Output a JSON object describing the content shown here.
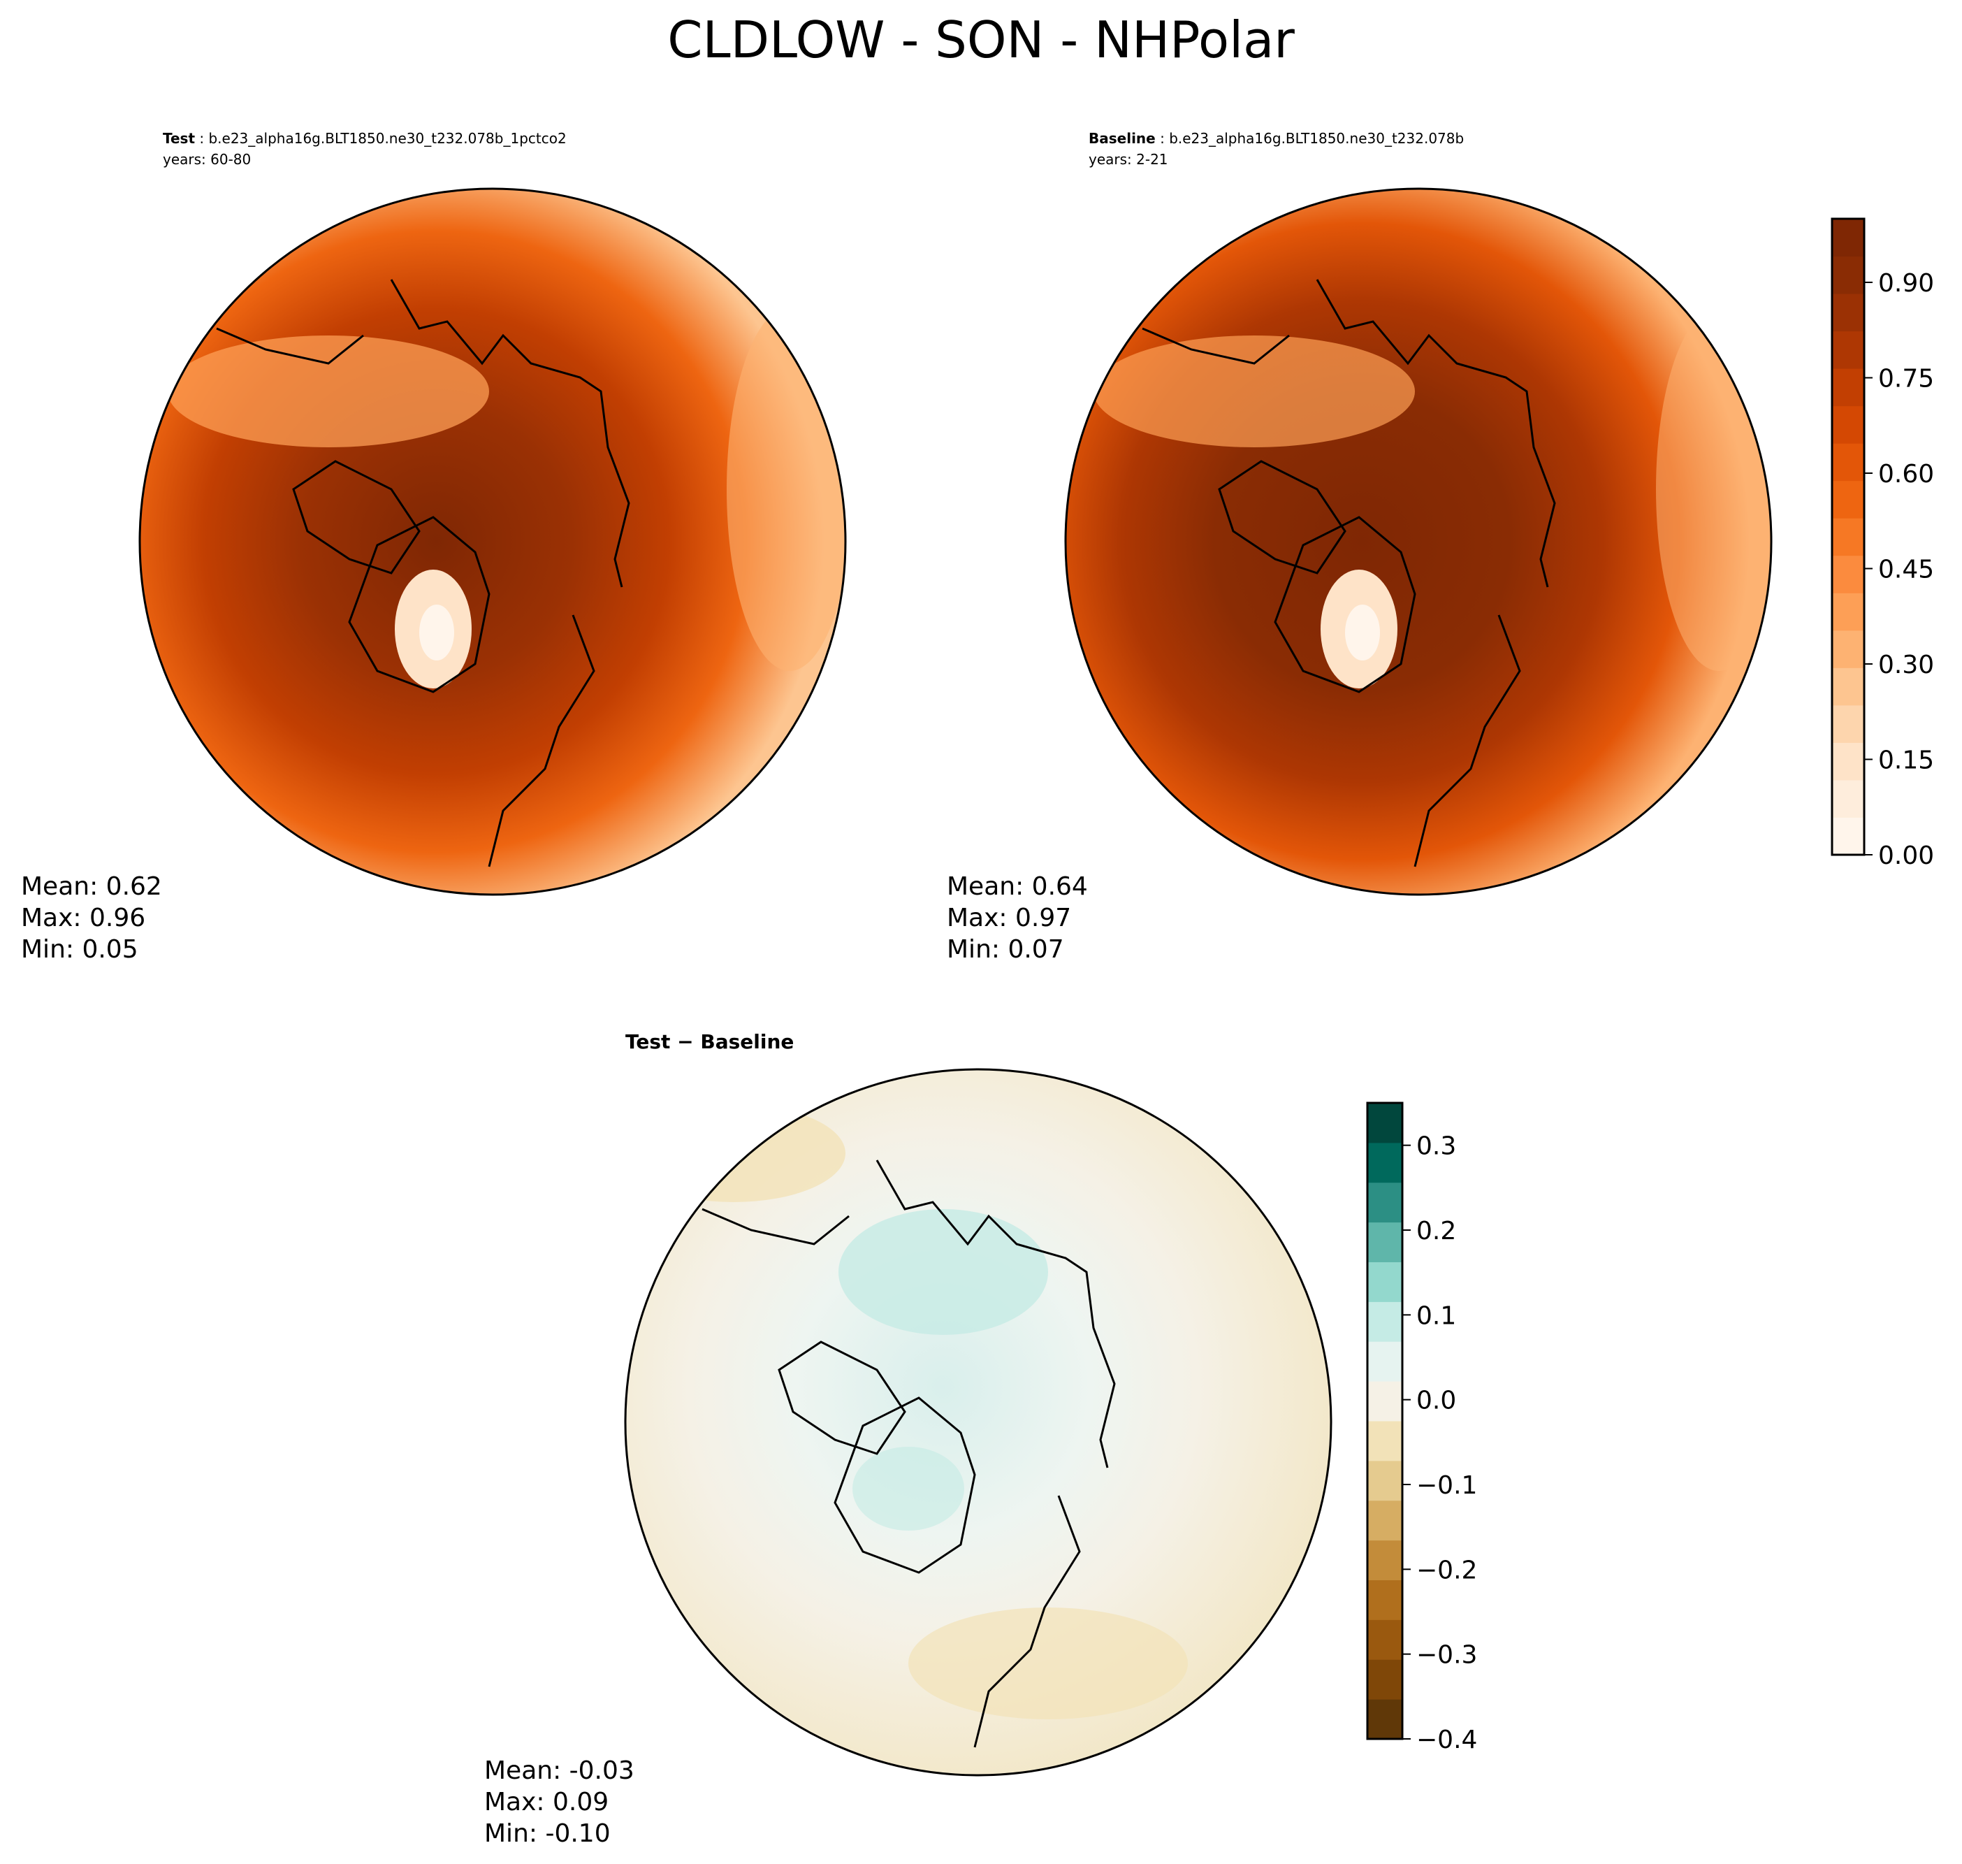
{
  "figure": {
    "title": "CLDLOW - SON - NHPolar"
  },
  "panels": [
    {
      "id": "test",
      "label": "Test",
      "case": "b.e23_alpha16g.BLT1850.ne30_t232.078b_1pctco2",
      "years": "years: 60-80",
      "stats": {
        "mean": "Mean:  0.62",
        "max": "Max:  0.96",
        "min": "Min:  0.05"
      }
    },
    {
      "id": "baseline",
      "label": "Baseline",
      "case": "b.e23_alpha16g.BLT1850.ne30_t232.078b",
      "years": "years: 2-21",
      "stats": {
        "mean": "Mean:  0.64",
        "max": "Max:  0.97",
        "min": "Min:  0.07"
      }
    },
    {
      "id": "diff",
      "label": "Test − Baseline",
      "stats": {
        "mean": "Mean: -0.03",
        "max": "Max:  0.09",
        "min": "Min: -0.10"
      }
    }
  ],
  "colorbars": {
    "absolute": {
      "range": [
        0.0,
        1.0
      ],
      "ticks": [
        0.0,
        0.15,
        0.3,
        0.45,
        0.6,
        0.75,
        0.9
      ],
      "tick_labels": [
        "0.00",
        "0.15",
        "0.30",
        "0.45",
        "0.60",
        "0.75",
        "0.90"
      ],
      "levels": 20,
      "colors": [
        "#fff5eb",
        "#feeddc",
        "#fee3c8",
        "#fdd5ad",
        "#fdc590",
        "#fdb272",
        "#fd9f56",
        "#fb8b3e",
        "#f67824",
        "#ee6511",
        "#e35608",
        "#d44803",
        "#c23f02",
        "#ae3703",
        "#9b3104",
        "#8a2c04",
        "#7f2704"
      ]
    },
    "difference": {
      "range": [
        -0.4,
        0.35
      ],
      "ticks": [
        -0.4,
        -0.3,
        -0.2,
        -0.1,
        0.0,
        0.1,
        0.2,
        0.3
      ],
      "tick_labels": [
        "−0.4",
        "−0.3",
        "−0.2",
        "−0.1",
        "0.0",
        "0.1",
        "0.2",
        "0.3"
      ],
      "levels": 15,
      "colors": [
        "#603808",
        "#7f4708",
        "#9a590f",
        "#b06f1d",
        "#c38c3a",
        "#d6ad63",
        "#e5cb8f",
        "#f2e2b8",
        "#f5f1e6",
        "#e6f3f0",
        "#c5ebe5",
        "#93d8cd",
        "#5fb6aa",
        "#2c8f84",
        "#00695c",
        "#01473d"
      ]
    }
  }
}
